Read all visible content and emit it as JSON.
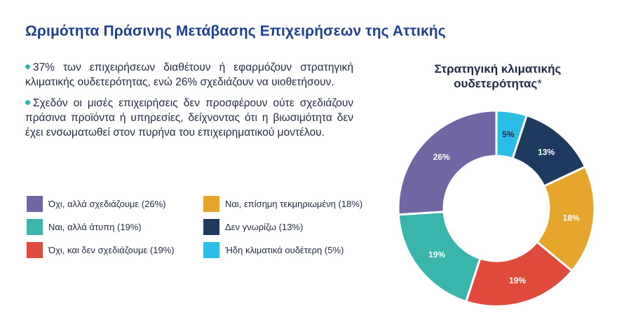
{
  "title": "Ωριμότητα Πράσινης Μετάβασης Επιχειρήσεων της Αττικής",
  "bullets": [
    "37% των επιχειρήσεων διαθέτουν ή εφαρμόζουν στρατηγική κλιματικής ουδετερότητας, ενώ 26% σχεδιάζουν να υιοθετήσουν.",
    "Σχεδόν οι μισές επιχειρήσεις δεν προσφέρουν ούτε σχεδιάζουν πράσινα προϊόντα ή υπηρεσίες, δείχνοντας ότι η βιωσιμότητα δεν έχει ενσωματωθεί στον πυρήνα του επιχειρηματικού μοντέλου."
  ],
  "legend": [
    {
      "label": "Όχι, αλλά σχεδιάζουμε (26%)",
      "color": "#6f66a3"
    },
    {
      "label": "Ναι, επίσημη τεκμηριωμένη (18%)",
      "color": "#e6a62c"
    },
    {
      "label": "Ναι, αλλά άτυπη (19%)",
      "color": "#39b5ac"
    },
    {
      "label": "Δεν γνωρίζω (13%)",
      "color": "#1f3a5f"
    },
    {
      "label": "Όχι, και δεν σχεδιάζουμε (19%)",
      "color": "#e04a3c"
    },
    {
      "label": "Ήδη κλιματικά ουδέτερη (5%)",
      "color": "#2bbde5"
    }
  ],
  "chart_data": {
    "type": "pie",
    "title": "Στρατηγική κλιματικής ουδετερότητας",
    "title_mark": "*",
    "slices": [
      {
        "label": "Ήδη κλιματικά ουδέτερη",
        "value": 5,
        "display": "5%",
        "color": "#2bbde5",
        "text_color": "#1f2a44"
      },
      {
        "label": "Δεν γνωρίζω",
        "value": 13,
        "display": "13%",
        "color": "#1f3a5f",
        "text_color": "#ffffff"
      },
      {
        "label": "Ναι, επίσημη τεκμηριωμένη",
        "value": 18,
        "display": "18%",
        "color": "#e6a62c",
        "text_color": "#ffffff"
      },
      {
        "label": "Όχι, και δεν σχεδιάζουμε",
        "value": 19,
        "display": "19%",
        "color": "#e04a3c",
        "text_color": "#ffffff"
      },
      {
        "label": "Ναι, αλλά άτυπη",
        "value": 19,
        "display": "19%",
        "color": "#39b5ac",
        "text_color": "#ffffff"
      },
      {
        "label": "Όχι, αλλά σχεδιάζουμε",
        "value": 26,
        "display": "26%",
        "color": "#6f66a3",
        "text_color": "#ffffff"
      }
    ]
  }
}
